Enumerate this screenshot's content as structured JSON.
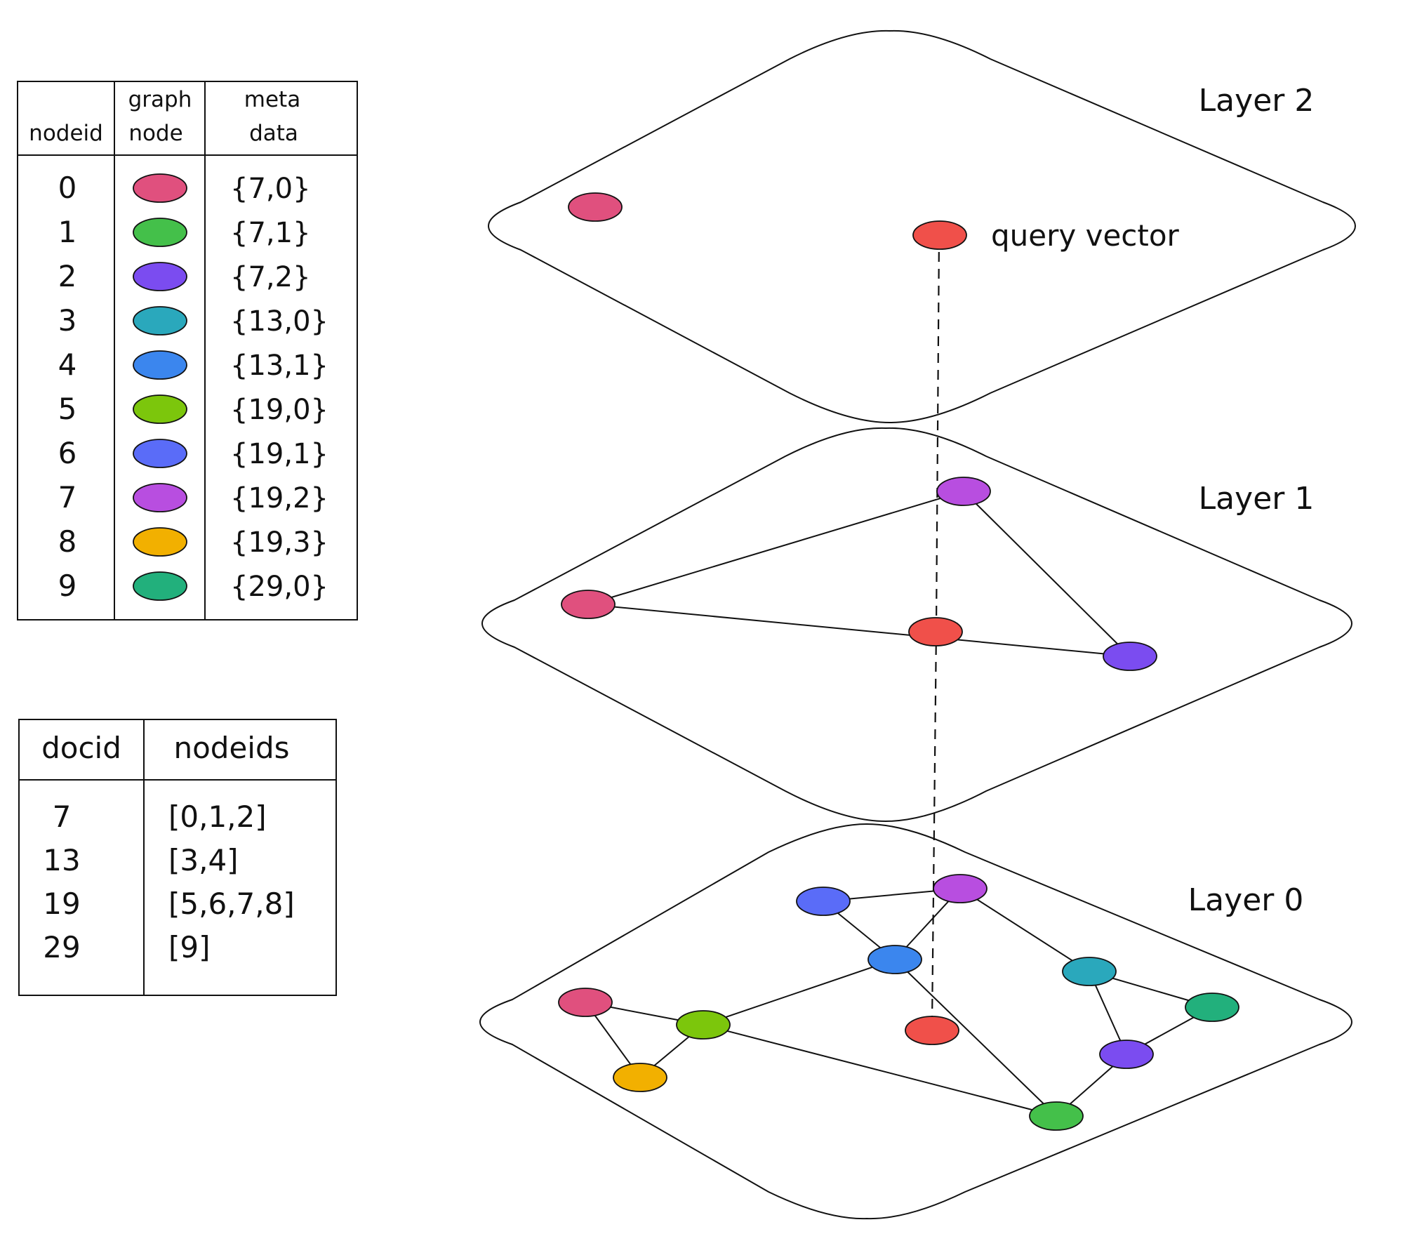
{
  "node_table": {
    "headers": {
      "nodeid": "nodeid",
      "graph_node": [
        "graph",
        "node"
      ],
      "meta_data": [
        "meta",
        "data"
      ]
    },
    "rows": [
      {
        "nodeid": "0",
        "color": "#e0507e",
        "meta": "{7,0}"
      },
      {
        "nodeid": "1",
        "color": "#44c04a",
        "meta": "{7,1}"
      },
      {
        "nodeid": "2",
        "color": "#7b4cf0",
        "meta": "{7,2}"
      },
      {
        "nodeid": "3",
        "color": "#2aa8bc",
        "meta": "{13,0}"
      },
      {
        "nodeid": "4",
        "color": "#3b86ee",
        "meta": "{13,1}"
      },
      {
        "nodeid": "5",
        "color": "#7cc60c",
        "meta": "{19,0}"
      },
      {
        "nodeid": "6",
        "color": "#5a6cf8",
        "meta": "{19,1}"
      },
      {
        "nodeid": "7",
        "color": "#b84ee0",
        "meta": "{19,2}"
      },
      {
        "nodeid": "8",
        "color": "#f2b000",
        "meta": "{19,3}"
      },
      {
        "nodeid": "9",
        "color": "#22b07c",
        "meta": "{29,0}"
      }
    ]
  },
  "doc_table": {
    "headers": {
      "docid": "docid",
      "nodeids": "nodeids"
    },
    "rows": [
      {
        "docid": "7",
        "nodeids": "[0,1,2]"
      },
      {
        "docid": "13",
        "nodeids": "[3,4]"
      },
      {
        "docid": "19",
        "nodeids": "[5,6,7,8]"
      },
      {
        "docid": "29",
        "nodeids": "[9]"
      }
    ]
  },
  "layers": {
    "layer2": {
      "label": "Layer 2"
    },
    "layer1": {
      "label": "Layer 1"
    },
    "layer0": {
      "label": "Layer 0"
    }
  },
  "query": {
    "label": "query vector",
    "color": "#f0504a"
  }
}
